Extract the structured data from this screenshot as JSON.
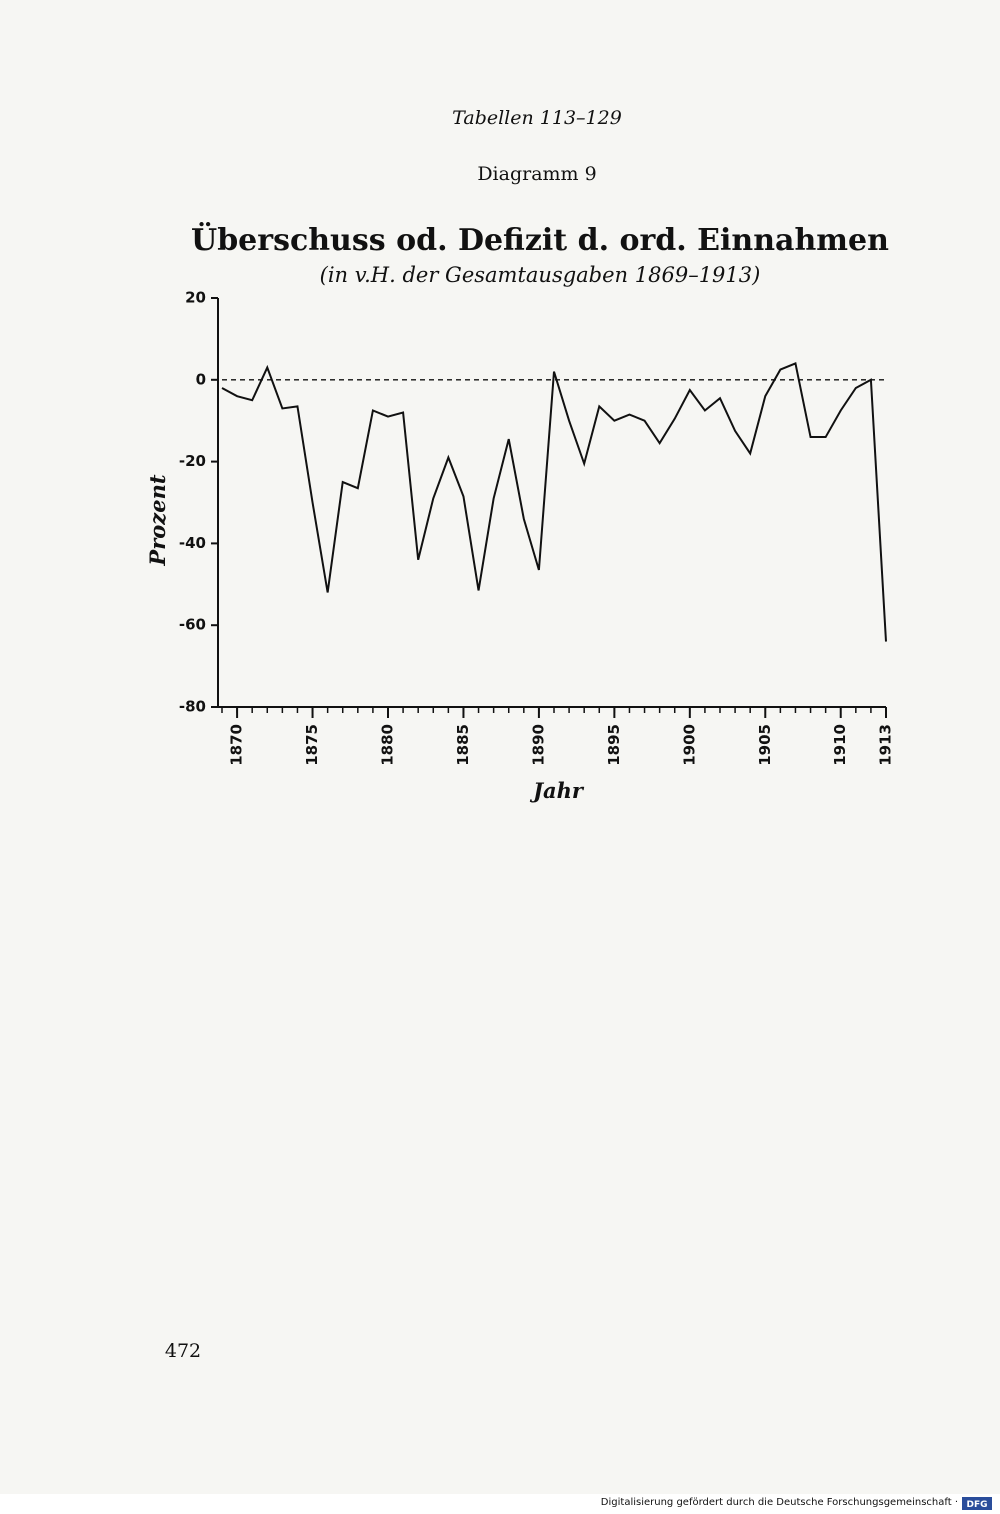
{
  "header": {
    "running_title": "Tabellen 113–129",
    "diagram_label": "Diagramm 9"
  },
  "chart_data": {
    "type": "line",
    "title": "Überschuss od. Defizit d. ord. Einnahmen",
    "subtitle": "(in v.H. der Gesamtausgaben 1869–1913)",
    "x_label": "Jahr",
    "y_label": "Prozent",
    "x": [
      1869,
      1870,
      1871,
      1872,
      1873,
      1874,
      1875,
      1876,
      1877,
      1878,
      1879,
      1880,
      1881,
      1882,
      1883,
      1884,
      1885,
      1886,
      1887,
      1888,
      1889,
      1890,
      1891,
      1892,
      1893,
      1894,
      1895,
      1896,
      1897,
      1898,
      1899,
      1900,
      1901,
      1902,
      1903,
      1904,
      1905,
      1906,
      1907,
      1908,
      1909,
      1910,
      1911,
      1912,
      1913
    ],
    "series": [
      {
        "name": "Überschuss/Defizit",
        "color": "#111111",
        "values": [
          -2,
          -4,
          -5,
          3,
          -7,
          -6.5,
          -30,
          -52,
          -25,
          -26.5,
          -7.5,
          -9,
          -8,
          -44,
          -29,
          -19,
          -28.5,
          -51.5,
          -29,
          -14.5,
          -34,
          -46.5,
          2,
          -10,
          -20.5,
          -6.5,
          -10,
          -8.5,
          -10,
          -15.5,
          -9.5,
          -2.5,
          -7.5,
          -4.5,
          -12.5,
          -18,
          -4,
          2.5,
          4,
          -14,
          -14,
          -7.5,
          -2,
          0,
          -64
        ]
      }
    ],
    "xlim": [
      1869,
      1913
    ],
    "xticks": [
      1870,
      1875,
      1880,
      1885,
      1890,
      1895,
      1900,
      1905,
      1910,
      1913
    ],
    "ylim": [
      -80,
      20
    ],
    "yticks": [
      20,
      0,
      -20,
      -40,
      -60,
      -80
    ],
    "reference_y": 0
  },
  "page_number": "472",
  "footer": {
    "text": "Digitalisierung gefördert durch die Deutsche Forschungsgemeinschaft ·",
    "logo": "DFG"
  }
}
